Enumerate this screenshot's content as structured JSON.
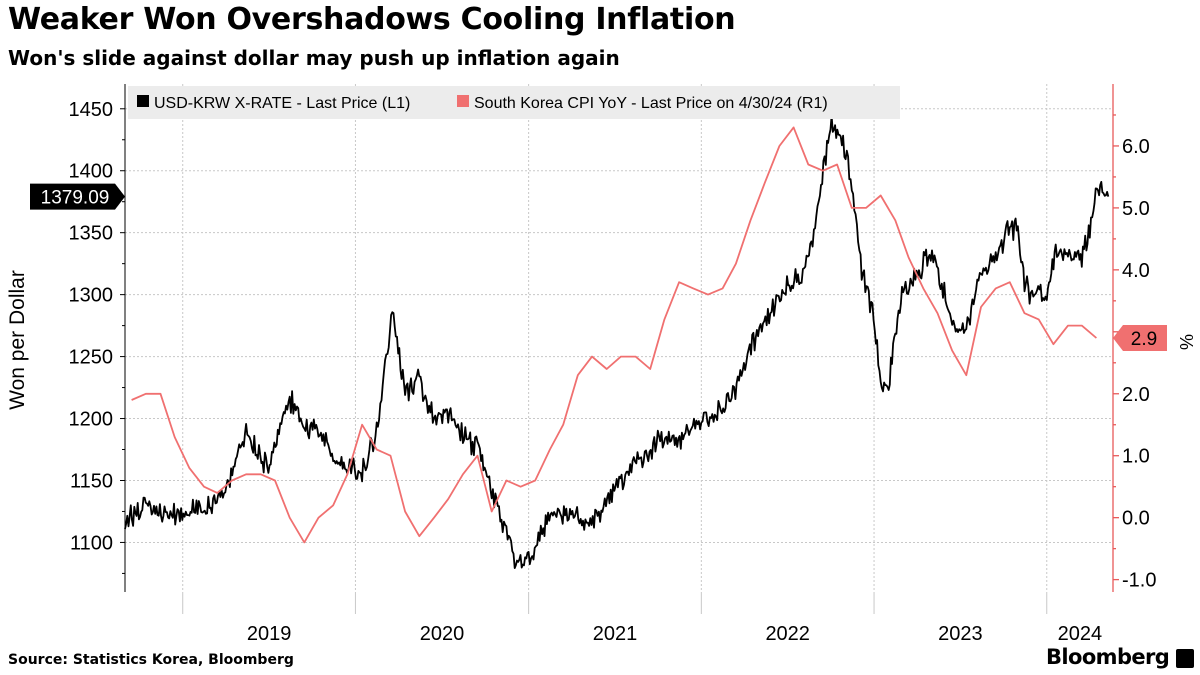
{
  "title": "Weaker Won Overshadows Cooling Inflation",
  "subtitle": "Won's slide against dollar may push up inflation again",
  "source": "Source: Statistics Korea, Bloomberg",
  "brand": "Bloomberg",
  "chart_data": {
    "type": "line",
    "title": "Weaker Won Overshadows Cooling Inflation",
    "subtitle": "Won's slide against dollar may push up inflation again",
    "ylabel": "Won per Dollar",
    "y2label": "%",
    "ylim": [
      1060,
      1470
    ],
    "y2lim": [
      -1.2,
      7.0
    ],
    "yticks": [
      "1100",
      "1150",
      "1200",
      "1250",
      "1300",
      "1350",
      "1400",
      "1450"
    ],
    "y2ticks": [
      "-1.0",
      "0.0",
      "1.0",
      "2.0",
      "3.0",
      "4.0",
      "5.0",
      "6.0"
    ],
    "xlim": [
      "2018-09-01",
      "2024-05-20"
    ],
    "xticks": [
      "2019",
      "2020",
      "2021",
      "2022",
      "2023",
      "2024"
    ],
    "grid": true,
    "legend_position": "top-left",
    "series": [
      {
        "name": "USD-KRW X-RATE - Last Price (L1)",
        "axis": "left",
        "color": "#000000",
        "last_value_label": "1379.09",
        "points": [
          [
            "2018-09-01",
            1115
          ],
          [
            "2018-10-15",
            1135
          ],
          [
            "2018-12-01",
            1120
          ],
          [
            "2019-01-15",
            1125
          ],
          [
            "2019-03-01",
            1130
          ],
          [
            "2019-04-01",
            1140
          ],
          [
            "2019-05-15",
            1188
          ],
          [
            "2019-07-01",
            1160
          ],
          [
            "2019-08-15",
            1215
          ],
          [
            "2019-09-15",
            1195
          ],
          [
            "2019-10-15",
            1190
          ],
          [
            "2019-11-15",
            1168
          ],
          [
            "2019-12-15",
            1162
          ],
          [
            "2020-01-15",
            1155
          ],
          [
            "2020-02-15",
            1192
          ],
          [
            "2020-03-19",
            1285
          ],
          [
            "2020-04-15",
            1220
          ],
          [
            "2020-05-15",
            1230
          ],
          [
            "2020-06-15",
            1200
          ],
          [
            "2020-07-15",
            1203
          ],
          [
            "2020-08-15",
            1186
          ],
          [
            "2020-09-15",
            1178
          ],
          [
            "2020-10-15",
            1140
          ],
          [
            "2020-11-15",
            1110
          ],
          [
            "2020-12-05",
            1085
          ],
          [
            "2021-01-01",
            1086
          ],
          [
            "2021-02-01",
            1110
          ],
          [
            "2021-03-01",
            1125
          ],
          [
            "2021-04-01",
            1120
          ],
          [
            "2021-05-01",
            1115
          ],
          [
            "2021-06-01",
            1125
          ],
          [
            "2021-07-01",
            1140
          ],
          [
            "2021-08-01",
            1160
          ],
          [
            "2021-09-01",
            1168
          ],
          [
            "2021-10-01",
            1183
          ],
          [
            "2021-11-01",
            1180
          ],
          [
            "2021-12-01",
            1187
          ],
          [
            "2022-01-01",
            1195
          ],
          [
            "2022-02-01",
            1203
          ],
          [
            "2022-03-01",
            1215
          ],
          [
            "2022-04-01",
            1240
          ],
          [
            "2022-05-01",
            1270
          ],
          [
            "2022-06-01",
            1290
          ],
          [
            "2022-07-01",
            1310
          ],
          [
            "2022-08-01",
            1315
          ],
          [
            "2022-09-01",
            1360
          ],
          [
            "2022-10-01",
            1440
          ],
          [
            "2022-10-25",
            1425
          ],
          [
            "2022-11-15",
            1390
          ],
          [
            "2022-12-01",
            1330
          ],
          [
            "2022-12-31",
            1280
          ],
          [
            "2023-01-15",
            1230
          ],
          [
            "2023-02-01",
            1225
          ],
          [
            "2023-02-15",
            1270
          ],
          [
            "2023-03-01",
            1300
          ],
          [
            "2023-04-01",
            1315
          ],
          [
            "2023-05-01",
            1335
          ],
          [
            "2023-06-01",
            1300
          ],
          [
            "2023-06-20",
            1270
          ],
          [
            "2023-07-15",
            1275
          ],
          [
            "2023-08-15",
            1320
          ],
          [
            "2023-09-15",
            1330
          ],
          [
            "2023-10-15",
            1355
          ],
          [
            "2023-11-01",
            1355
          ],
          [
            "2023-11-15",
            1310
          ],
          [
            "2023-12-01",
            1300
          ],
          [
            "2024-01-01",
            1300
          ],
          [
            "2024-01-20",
            1335
          ],
          [
            "2024-02-15",
            1330
          ],
          [
            "2024-03-15",
            1330
          ],
          [
            "2024-04-01",
            1350
          ],
          [
            "2024-04-16",
            1390
          ],
          [
            "2024-04-30",
            1380
          ],
          [
            "2024-05-10",
            1379.09
          ]
        ]
      },
      {
        "name": "South Korea CPI YoY - Last Price on 4/30/24 (R1)",
        "axis": "right",
        "color": "#f07070",
        "last_value_label": "2.9",
        "points": [
          [
            "2018-09-15",
            1.9
          ],
          [
            "2018-10-15",
            2.0
          ],
          [
            "2018-11-15",
            2.0
          ],
          [
            "2018-12-15",
            1.3
          ],
          [
            "2019-01-15",
            0.8
          ],
          [
            "2019-02-15",
            0.5
          ],
          [
            "2019-03-15",
            0.4
          ],
          [
            "2019-04-15",
            0.6
          ],
          [
            "2019-05-15",
            0.7
          ],
          [
            "2019-06-15",
            0.7
          ],
          [
            "2019-07-15",
            0.6
          ],
          [
            "2019-08-15",
            0.0
          ],
          [
            "2019-09-15",
            -0.4
          ],
          [
            "2019-10-15",
            0.0
          ],
          [
            "2019-11-15",
            0.2
          ],
          [
            "2019-12-15",
            0.7
          ],
          [
            "2020-01-15",
            1.5
          ],
          [
            "2020-02-15",
            1.1
          ],
          [
            "2020-03-15",
            1.0
          ],
          [
            "2020-04-15",
            0.1
          ],
          [
            "2020-05-15",
            -0.3
          ],
          [
            "2020-06-15",
            0.0
          ],
          [
            "2020-07-15",
            0.3
          ],
          [
            "2020-08-15",
            0.7
          ],
          [
            "2020-09-15",
            1.0
          ],
          [
            "2020-10-15",
            0.1
          ],
          [
            "2020-11-15",
            0.6
          ],
          [
            "2020-12-15",
            0.5
          ],
          [
            "2021-01-15",
            0.6
          ],
          [
            "2021-02-15",
            1.1
          ],
          [
            "2021-03-15",
            1.5
          ],
          [
            "2021-04-15",
            2.3
          ],
          [
            "2021-05-15",
            2.6
          ],
          [
            "2021-06-15",
            2.4
          ],
          [
            "2021-07-15",
            2.6
          ],
          [
            "2021-08-15",
            2.6
          ],
          [
            "2021-09-15",
            2.4
          ],
          [
            "2021-10-15",
            3.2
          ],
          [
            "2021-11-15",
            3.8
          ],
          [
            "2021-12-15",
            3.7
          ],
          [
            "2022-01-15",
            3.6
          ],
          [
            "2022-02-15",
            3.7
          ],
          [
            "2022-03-15",
            4.1
          ],
          [
            "2022-04-15",
            4.8
          ],
          [
            "2022-05-15",
            5.4
          ],
          [
            "2022-06-15",
            6.0
          ],
          [
            "2022-07-15",
            6.3
          ],
          [
            "2022-08-15",
            5.7
          ],
          [
            "2022-09-15",
            5.6
          ],
          [
            "2022-10-15",
            5.7
          ],
          [
            "2022-11-15",
            5.0
          ],
          [
            "2022-12-15",
            5.0
          ],
          [
            "2023-01-15",
            5.2
          ],
          [
            "2023-02-15",
            4.8
          ],
          [
            "2023-03-15",
            4.2
          ],
          [
            "2023-04-15",
            3.7
          ],
          [
            "2023-05-15",
            3.3
          ],
          [
            "2023-06-15",
            2.7
          ],
          [
            "2023-07-15",
            2.3
          ],
          [
            "2023-08-15",
            3.4
          ],
          [
            "2023-09-15",
            3.7
          ],
          [
            "2023-10-15",
            3.8
          ],
          [
            "2023-11-15",
            3.3
          ],
          [
            "2023-12-15",
            3.2
          ],
          [
            "2024-01-15",
            2.8
          ],
          [
            "2024-02-15",
            3.1
          ],
          [
            "2024-03-15",
            3.1
          ],
          [
            "2024-04-15",
            2.9
          ]
        ]
      }
    ]
  }
}
